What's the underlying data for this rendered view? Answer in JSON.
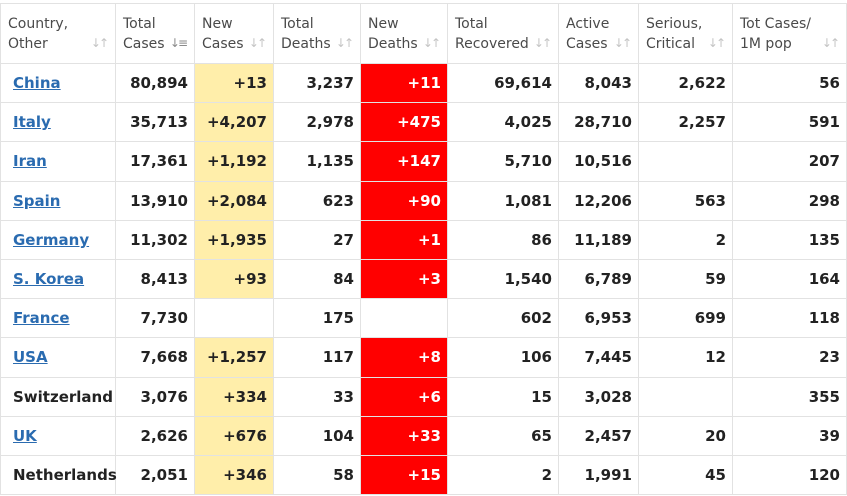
{
  "headers": [
    {
      "line1": "Country,",
      "line2": "Other"
    },
    {
      "line1": "Total",
      "line2": "Cases"
    },
    {
      "line1": "New",
      "line2": "Cases"
    },
    {
      "line1": "Total",
      "line2": "Deaths"
    },
    {
      "line1": "New",
      "line2": "Deaths"
    },
    {
      "line1": "Total",
      "line2": "Recovered"
    },
    {
      "line1": "Active",
      "line2": "Cases"
    },
    {
      "line1": "Serious,",
      "line2": "Critical"
    },
    {
      "line1": "Tot Cases/",
      "line2": "1M pop"
    }
  ],
  "sort": {
    "active_column": "total_cases",
    "direction": "descending"
  },
  "colors": {
    "new_cases_bg": "#ffeeaa",
    "new_deaths_bg": "#ff0000",
    "link": "#2a6bb0"
  },
  "rows": [
    {
      "country": "China",
      "link": true,
      "total_cases": "80,894",
      "new_cases": "+13",
      "total_deaths": "3,237",
      "new_deaths": "+11",
      "total_recovered": "69,614",
      "active_cases": "8,043",
      "serious_critical": "2,622",
      "tot_cases_1m": "56"
    },
    {
      "country": "Italy",
      "link": true,
      "total_cases": "35,713",
      "new_cases": "+4,207",
      "total_deaths": "2,978",
      "new_deaths": "+475",
      "total_recovered": "4,025",
      "active_cases": "28,710",
      "serious_critical": "2,257",
      "tot_cases_1m": "591"
    },
    {
      "country": "Iran",
      "link": true,
      "total_cases": "17,361",
      "new_cases": "+1,192",
      "total_deaths": "1,135",
      "new_deaths": "+147",
      "total_recovered": "5,710",
      "active_cases": "10,516",
      "serious_critical": "",
      "tot_cases_1m": "207"
    },
    {
      "country": "Spain",
      "link": true,
      "total_cases": "13,910",
      "new_cases": "+2,084",
      "total_deaths": "623",
      "new_deaths": "+90",
      "total_recovered": "1,081",
      "active_cases": "12,206",
      "serious_critical": "563",
      "tot_cases_1m": "298"
    },
    {
      "country": "Germany",
      "link": true,
      "total_cases": "11,302",
      "new_cases": "+1,935",
      "total_deaths": "27",
      "new_deaths": "+1",
      "total_recovered": "86",
      "active_cases": "11,189",
      "serious_critical": "2",
      "tot_cases_1m": "135"
    },
    {
      "country": "S. Korea",
      "link": true,
      "total_cases": "8,413",
      "new_cases": "+93",
      "total_deaths": "84",
      "new_deaths": "+3",
      "total_recovered": "1,540",
      "active_cases": "6,789",
      "serious_critical": "59",
      "tot_cases_1m": "164"
    },
    {
      "country": "France",
      "link": true,
      "total_cases": "7,730",
      "new_cases": "",
      "total_deaths": "175",
      "new_deaths": "",
      "total_recovered": "602",
      "active_cases": "6,953",
      "serious_critical": "699",
      "tot_cases_1m": "118"
    },
    {
      "country": "USA",
      "link": true,
      "total_cases": "7,668",
      "new_cases": "+1,257",
      "total_deaths": "117",
      "new_deaths": "+8",
      "total_recovered": "106",
      "active_cases": "7,445",
      "serious_critical": "12",
      "tot_cases_1m": "23"
    },
    {
      "country": "Switzerland",
      "link": false,
      "total_cases": "3,076",
      "new_cases": "+334",
      "total_deaths": "33",
      "new_deaths": "+6",
      "total_recovered": "15",
      "active_cases": "3,028",
      "serious_critical": "",
      "tot_cases_1m": "355"
    },
    {
      "country": "UK",
      "link": true,
      "total_cases": "2,626",
      "new_cases": "+676",
      "total_deaths": "104",
      "new_deaths": "+33",
      "total_recovered": "65",
      "active_cases": "2,457",
      "serious_critical": "20",
      "tot_cases_1m": "39"
    },
    {
      "country": "Netherlands",
      "link": false,
      "total_cases": "2,051",
      "new_cases": "+346",
      "total_deaths": "58",
      "new_deaths": "+15",
      "total_recovered": "2",
      "active_cases": "1,991",
      "serious_critical": "45",
      "tot_cases_1m": "120"
    }
  ]
}
